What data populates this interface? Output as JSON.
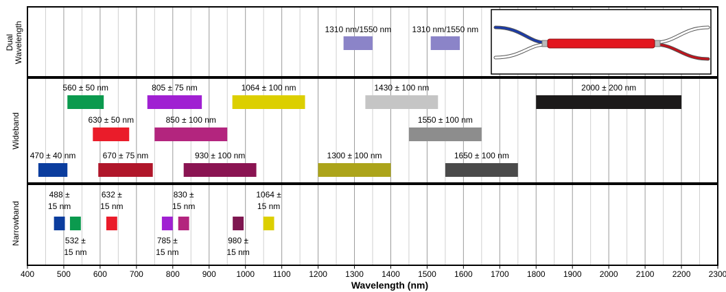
{
  "chart_data": {
    "type": "bar",
    "orientation": "horizontal-range",
    "xlabel": "Wavelength (nm)",
    "xlim": [
      400,
      2300
    ],
    "x_ticks": [
      400,
      500,
      600,
      700,
      800,
      900,
      1000,
      1100,
      1200,
      1300,
      1400,
      1500,
      1600,
      1700,
      1800,
      1900,
      2000,
      2100,
      2200,
      2300
    ],
    "minor_grid_step": 50,
    "grid": true,
    "rows": [
      "Dual Wavelength",
      "Wideband",
      "Narrowband"
    ],
    "title": "",
    "bands": [
      {
        "row": "Dual Wavelength",
        "label": [
          "1310 nm/1550 nm"
        ],
        "start": 1270,
        "end": 1350,
        "color": "#8b84c8",
        "level": 0
      },
      {
        "row": "Dual Wavelength",
        "label": [
          "1310 nm/1550 nm"
        ],
        "start": 1510,
        "end": 1590,
        "color": "#8b84c8",
        "level": 0
      },
      {
        "row": "Wideband",
        "label": [
          "560 ± 50 nm"
        ],
        "start": 510,
        "end": 610,
        "color": "#0b9a4e",
        "level": 0
      },
      {
        "row": "Wideband",
        "label": [
          "805 ± 75 nm"
        ],
        "start": 730,
        "end": 880,
        "color": "#a020d2",
        "level": 0
      },
      {
        "row": "Wideband",
        "label": [
          "1064 ± 100 nm"
        ],
        "start": 964,
        "end": 1164,
        "color": "#dccf00",
        "level": 0
      },
      {
        "row": "Wideband",
        "label": [
          "1430 ± 100 nm"
        ],
        "start": 1330,
        "end": 1530,
        "color": "#c5c5c5",
        "level": 0
      },
      {
        "row": "Wideband",
        "label": [
          "2000 ± 200 nm"
        ],
        "start": 1800,
        "end": 2200,
        "color": "#1c1a1a",
        "level": 0
      },
      {
        "row": "Wideband",
        "label": [
          "630 ± 50 nm"
        ],
        "start": 580,
        "end": 680,
        "color": "#ea1c2a",
        "level": 1
      },
      {
        "row": "Wideband",
        "label": [
          "850 ± 100 nm"
        ],
        "start": 750,
        "end": 950,
        "color": "#b3257e",
        "level": 1
      },
      {
        "row": "Wideband",
        "label": [
          "1550 ± 100 nm"
        ],
        "start": 1450,
        "end": 1650,
        "color": "#8d8d8d",
        "level": 1
      },
      {
        "row": "Wideband",
        "label": [
          "470 ± 40 nm"
        ],
        "start": 430,
        "end": 510,
        "color": "#0b3d9e",
        "level": 2
      },
      {
        "row": "Wideband",
        "label": [
          "670 ± 75 nm"
        ],
        "start": 595,
        "end": 745,
        "color": "#b0162a",
        "level": 2
      },
      {
        "row": "Wideband",
        "label": [
          "930 ± 100 nm"
        ],
        "start": 830,
        "end": 1030,
        "color": "#8a1452",
        "level": 2
      },
      {
        "row": "Wideband",
        "label": [
          "1300 ± 100 nm"
        ],
        "start": 1200,
        "end": 1400,
        "color": "#aca41a",
        "level": 2
      },
      {
        "row": "Wideband",
        "label": [
          "1650 ± 100 nm"
        ],
        "start": 1550,
        "end": 1750,
        "color": "#4a4a4a",
        "level": 2
      },
      {
        "row": "Narrowband",
        "label": [
          "488 ±",
          "15 nm"
        ],
        "start": 473,
        "end": 503,
        "color": "#0b3d9e",
        "position": "above"
      },
      {
        "row": "Narrowband",
        "label": [
          "532 ±",
          "15 nm"
        ],
        "start": 517,
        "end": 547,
        "color": "#0b9a4e",
        "position": "below"
      },
      {
        "row": "Narrowband",
        "label": [
          "632 ±",
          "15 nm"
        ],
        "start": 617,
        "end": 647,
        "color": "#ea1c2a",
        "position": "above"
      },
      {
        "row": "Narrowband",
        "label": [
          "785 ±",
          "15 nm"
        ],
        "start": 770,
        "end": 800,
        "color": "#a020d2",
        "position": "below"
      },
      {
        "row": "Narrowband",
        "label": [
          "830 ±",
          "15 nm"
        ],
        "start": 815,
        "end": 845,
        "color": "#b3257e",
        "position": "above"
      },
      {
        "row": "Narrowband",
        "label": [
          "980 ±",
          "15 nm"
        ],
        "start": 965,
        "end": 995,
        "color": "#7e1650",
        "position": "below"
      },
      {
        "row": "Narrowband",
        "label": [
          "1064 ±",
          "15 nm"
        ],
        "start": 1049,
        "end": 1079,
        "color": "#dccf00",
        "position": "above"
      }
    ]
  },
  "row_labels": {
    "dual": [
      "Dual",
      "Wavelength"
    ],
    "wide": "Wideband",
    "narrow": "Narrowband"
  },
  "inset": {
    "left_fiber_color": "#1a3aa8",
    "right_fiber_color": "#c0141c",
    "body_color": "#e3161e"
  }
}
